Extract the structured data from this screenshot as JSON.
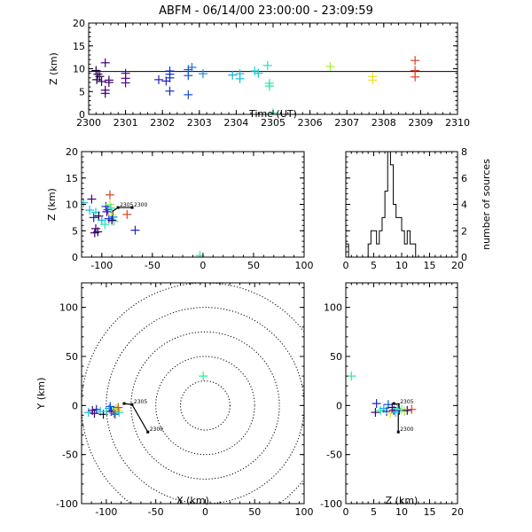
{
  "title": "ABFM - 06/14/00 23:00:00 - 23:09:59",
  "chart_data": [
    {
      "id": "time_height",
      "type": "scatter",
      "xlabel": "Time (UT)",
      "ylabel": "Z (km)",
      "xlim": [
        2300,
        2310
      ],
      "ylim": [
        0,
        20
      ],
      "xticks": [
        "2300",
        "2301",
        "2302",
        "2303",
        "2304",
        "2305",
        "2306",
        "2307",
        "2308",
        "2309",
        "2310"
      ],
      "yticks": [
        "0",
        "5",
        "10",
        "15",
        "20"
      ],
      "reference_line_y": 9.4,
      "points": [
        {
          "x": 2300.2,
          "y": 9.6,
          "c": "#200040"
        },
        {
          "x": 2300.25,
          "y": 8.8,
          "c": "#200040"
        },
        {
          "x": 2300.3,
          "y": 8.3,
          "c": "#300050"
        },
        {
          "x": 2300.22,
          "y": 7.6,
          "c": "#200040"
        },
        {
          "x": 2300.35,
          "y": 7.2,
          "c": "#300060"
        },
        {
          "x": 2300.45,
          "y": 11.3,
          "c": "#400070"
        },
        {
          "x": 2300.45,
          "y": 5.3,
          "c": "#400070"
        },
        {
          "x": 2300.45,
          "y": 4.6,
          "c": "#400070"
        },
        {
          "x": 2300.55,
          "y": 7.5,
          "c": "#400070"
        },
        {
          "x": 2300.55,
          "y": 7.0,
          "c": "#400070"
        },
        {
          "x": 2301.0,
          "y": 9.0,
          "c": "#5000a0"
        },
        {
          "x": 2301.0,
          "y": 7.9,
          "c": "#5000a0"
        },
        {
          "x": 2301.0,
          "y": 6.9,
          "c": "#5000a0"
        },
        {
          "x": 2301.9,
          "y": 7.6,
          "c": "#2020c0"
        },
        {
          "x": 2302.1,
          "y": 7.3,
          "c": "#2020c0"
        },
        {
          "x": 2302.2,
          "y": 9.5,
          "c": "#1030d0"
        },
        {
          "x": 2302.2,
          "y": 8.8,
          "c": "#1030d0"
        },
        {
          "x": 2302.2,
          "y": 8.0,
          "c": "#1030d0"
        },
        {
          "x": 2302.2,
          "y": 5.1,
          "c": "#1030d0"
        },
        {
          "x": 2302.7,
          "y": 9.8,
          "c": "#1050e0"
        },
        {
          "x": 2302.7,
          "y": 8.5,
          "c": "#1050e0"
        },
        {
          "x": 2302.7,
          "y": 4.3,
          "c": "#1050e0"
        },
        {
          "x": 2302.8,
          "y": 10.3,
          "c": "#1070f0"
        },
        {
          "x": 2303.1,
          "y": 8.9,
          "c": "#1090e0"
        },
        {
          "x": 2303.9,
          "y": 8.6,
          "c": "#10b0e0"
        },
        {
          "x": 2304.1,
          "y": 8.9,
          "c": "#10c0e0"
        },
        {
          "x": 2304.1,
          "y": 7.8,
          "c": "#10c0e0"
        },
        {
          "x": 2304.5,
          "y": 9.5,
          "c": "#10d0d0"
        },
        {
          "x": 2304.6,
          "y": 9.0,
          "c": "#10d0d0"
        },
        {
          "x": 2304.85,
          "y": 10.7,
          "c": "#20e0c0"
        },
        {
          "x": 2304.9,
          "y": 6.8,
          "c": "#20e8a0"
        },
        {
          "x": 2304.9,
          "y": 6.2,
          "c": "#20e8a0"
        },
        {
          "x": 2305.0,
          "y": 0.3,
          "c": "#20f090"
        },
        {
          "x": 2306.55,
          "y": 10.5,
          "c": "#a0f040"
        },
        {
          "x": 2307.7,
          "y": 8.3,
          "c": "#f0e020"
        },
        {
          "x": 2307.7,
          "y": 7.5,
          "c": "#f0e020"
        },
        {
          "x": 2308.85,
          "y": 11.8,
          "c": "#e04020"
        },
        {
          "x": 2308.85,
          "y": 9.6,
          "c": "#e04020"
        },
        {
          "x": 2308.85,
          "y": 8.2,
          "c": "#e04020"
        }
      ]
    },
    {
      "id": "x_height",
      "type": "scatter",
      "xlabel": "",
      "ylabel": "Z (km)",
      "xlim": [
        -120,
        100
      ],
      "ylim": [
        0,
        20
      ],
      "xticks": [
        "-100",
        "-50",
        "0",
        "50",
        "100"
      ],
      "yticks": [
        "0",
        "5",
        "10",
        "15",
        "20"
      ],
      "track": [
        [
          -90,
          8.6
        ],
        [
          -84,
          9.4
        ],
        [
          -70,
          9.4
        ]
      ],
      "track_labels": [
        {
          "text": "2305",
          "x": -84,
          "y": 9.4
        },
        {
          "text": "2300",
          "x": -70,
          "y": 9.4
        }
      ],
      "points": [
        {
          "x": -118,
          "y": 10.3,
          "c": "#10c0e0"
        },
        {
          "x": -112,
          "y": 8.9,
          "c": "#10c0e0"
        },
        {
          "x": -110,
          "y": 11.0,
          "c": "#400070"
        },
        {
          "x": -106,
          "y": 8.5,
          "c": "#10d0d0"
        },
        {
          "x": -108,
          "y": 7.5,
          "c": "#2020c0"
        },
        {
          "x": -106,
          "y": 5.4,
          "c": "#400070"
        },
        {
          "x": -107,
          "y": 4.6,
          "c": "#400070"
        },
        {
          "x": -104,
          "y": 4.8,
          "c": "#300050"
        },
        {
          "x": -103,
          "y": 7.8,
          "c": "#200040"
        },
        {
          "x": -100,
          "y": 7.0,
          "c": "#10b0e0"
        },
        {
          "x": -97,
          "y": 6.2,
          "c": "#20e8a0"
        },
        {
          "x": -96,
          "y": 9.6,
          "c": "#1030d0"
        },
        {
          "x": -95,
          "y": 8.6,
          "c": "#5000a0"
        },
        {
          "x": -94,
          "y": 9.0,
          "c": "#1050e0"
        },
        {
          "x": -93,
          "y": 7.3,
          "c": "#1030d0"
        },
        {
          "x": -92,
          "y": 11.8,
          "c": "#e04020"
        },
        {
          "x": -92,
          "y": 10.0,
          "c": "#a0f040"
        },
        {
          "x": -91,
          "y": 9.3,
          "c": "#20e0c0"
        },
        {
          "x": -90,
          "y": 8.0,
          "c": "#f0e020"
        },
        {
          "x": -89,
          "y": 7.6,
          "c": "#1070f0"
        },
        {
          "x": -88,
          "y": 6.8,
          "c": "#20e8a0"
        },
        {
          "x": -90,
          "y": 7.0,
          "c": "#300060"
        },
        {
          "x": -75,
          "y": 8.1,
          "c": "#e04020"
        },
        {
          "x": -67,
          "y": 5.1,
          "c": "#2020c0"
        },
        {
          "x": -3,
          "y": 0.3,
          "c": "#20f090"
        }
      ]
    },
    {
      "id": "height_histogram",
      "type": "bar",
      "xlabel": "",
      "ylabel": "number of sources",
      "xlim": [
        0,
        20
      ],
      "ylim": [
        0,
        8
      ],
      "xticks": [
        "0",
        "5",
        "10",
        "15",
        "20"
      ],
      "yticks": [
        "0",
        "2",
        "4",
        "6",
        "8"
      ],
      "bin_width": 0.5,
      "bins": [
        0,
        0.5,
        1,
        1.5,
        2,
        2.5,
        3,
        3.5,
        4,
        4.5,
        5,
        5.5,
        6,
        6.5,
        7,
        7.5,
        8,
        8.5,
        9,
        9.5,
        10,
        10.5,
        11,
        11.5,
        12
      ],
      "values": [
        1,
        0,
        0,
        0,
        0,
        0,
        0,
        0,
        1,
        2,
        2,
        1,
        2,
        3,
        5,
        8,
        7,
        4,
        3,
        3,
        2,
        1,
        2,
        1,
        1
      ]
    },
    {
      "id": "plan_view",
      "type": "scatter",
      "xlabel": "X (km)",
      "ylabel": "Y (km)",
      "xlim": [
        -125,
        100
      ],
      "ylim": [
        -100,
        125
      ],
      "xticks": [
        "-100",
        "-50",
        "0",
        "50",
        "100"
      ],
      "yticks": [
        "-100",
        "-50",
        "0",
        "50",
        "100"
      ],
      "range_rings_km": [
        25,
        50,
        75,
        100,
        125
      ],
      "track": [
        [
          -82,
          2
        ],
        [
          -74,
          1
        ],
        [
          -58,
          -27
        ]
      ],
      "track_labels": [
        {
          "text": "2305",
          "x": -74,
          "y": 1
        },
        {
          "text": "2300",
          "x": -58,
          "y": -27
        }
      ],
      "points": [
        {
          "x": -118,
          "y": -7,
          "c": "#10c0e0"
        },
        {
          "x": -114,
          "y": -5,
          "c": "#400070"
        },
        {
          "x": -112,
          "y": -8,
          "c": "#400070"
        },
        {
          "x": -110,
          "y": -4,
          "c": "#2020c0"
        },
        {
          "x": -106,
          "y": -6,
          "c": "#10d0d0"
        },
        {
          "x": -103,
          "y": -9,
          "c": "#200040"
        },
        {
          "x": -100,
          "y": -6,
          "c": "#20e8a0"
        },
        {
          "x": -97,
          "y": -3,
          "c": "#10b0e0"
        },
        {
          "x": -95,
          "y": -6,
          "c": "#5000a0"
        },
        {
          "x": -93,
          "y": -5,
          "c": "#1030d0"
        },
        {
          "x": -92,
          "y": -8,
          "c": "#e04020"
        },
        {
          "x": -90,
          "y": -3,
          "c": "#a0f040"
        },
        {
          "x": -89,
          "y": -5,
          "c": "#f0e020"
        },
        {
          "x": -91,
          "y": -9,
          "c": "#1070f0"
        },
        {
          "x": -88,
          "y": -2,
          "c": "#e04020"
        },
        {
          "x": -87,
          "y": -7,
          "c": "#20e0c0"
        },
        {
          "x": -96,
          "y": -1,
          "c": "#1050e0"
        },
        {
          "x": -2,
          "y": 30,
          "c": "#20f090"
        }
      ]
    },
    {
      "id": "z_y",
      "type": "scatter",
      "xlabel": "Z (km)",
      "ylabel": "",
      "xlim": [
        0,
        20
      ],
      "ylim": [
        -100,
        125
      ],
      "xticks": [
        "0",
        "5",
        "10",
        "15",
        "20"
      ],
      "yticks": [
        "-100",
        "-50",
        "0",
        "50",
        "100"
      ],
      "track": [
        [
          8.6,
          2
        ],
        [
          9.4,
          1
        ],
        [
          9.4,
          -27
        ]
      ],
      "track_labels": [
        {
          "text": "2305",
          "x": 9.4,
          "y": 1
        },
        {
          "text": "2300",
          "x": 9.4,
          "y": -27
        }
      ],
      "points": [
        {
          "x": 1.0,
          "y": 30,
          "c": "#20f090"
        },
        {
          "x": 5.5,
          "y": 2,
          "c": "#2020c0"
        },
        {
          "x": 5.3,
          "y": -7,
          "c": "#400070"
        },
        {
          "x": 6.2,
          "y": -5,
          "c": "#20e8a0"
        },
        {
          "x": 6.8,
          "y": -3,
          "c": "#10b0e0"
        },
        {
          "x": 7.3,
          "y": -6,
          "c": "#1030d0"
        },
        {
          "x": 7.6,
          "y": 1,
          "c": "#1050e0"
        },
        {
          "x": 8.0,
          "y": -8,
          "c": "#f0e020"
        },
        {
          "x": 8.3,
          "y": -2,
          "c": "#300050"
        },
        {
          "x": 8.6,
          "y": -5,
          "c": "#5000a0"
        },
        {
          "x": 8.9,
          "y": -7,
          "c": "#10c0e0"
        },
        {
          "x": 9.3,
          "y": -3,
          "c": "#20e0c0"
        },
        {
          "x": 9.6,
          "y": -5,
          "c": "#1030d0"
        },
        {
          "x": 10.0,
          "y": -4,
          "c": "#a0f040"
        },
        {
          "x": 10.5,
          "y": -6,
          "c": "#a0f040"
        },
        {
          "x": 11.0,
          "y": -5,
          "c": "#400070"
        },
        {
          "x": 11.8,
          "y": -4,
          "c": "#e04020"
        }
      ]
    }
  ]
}
